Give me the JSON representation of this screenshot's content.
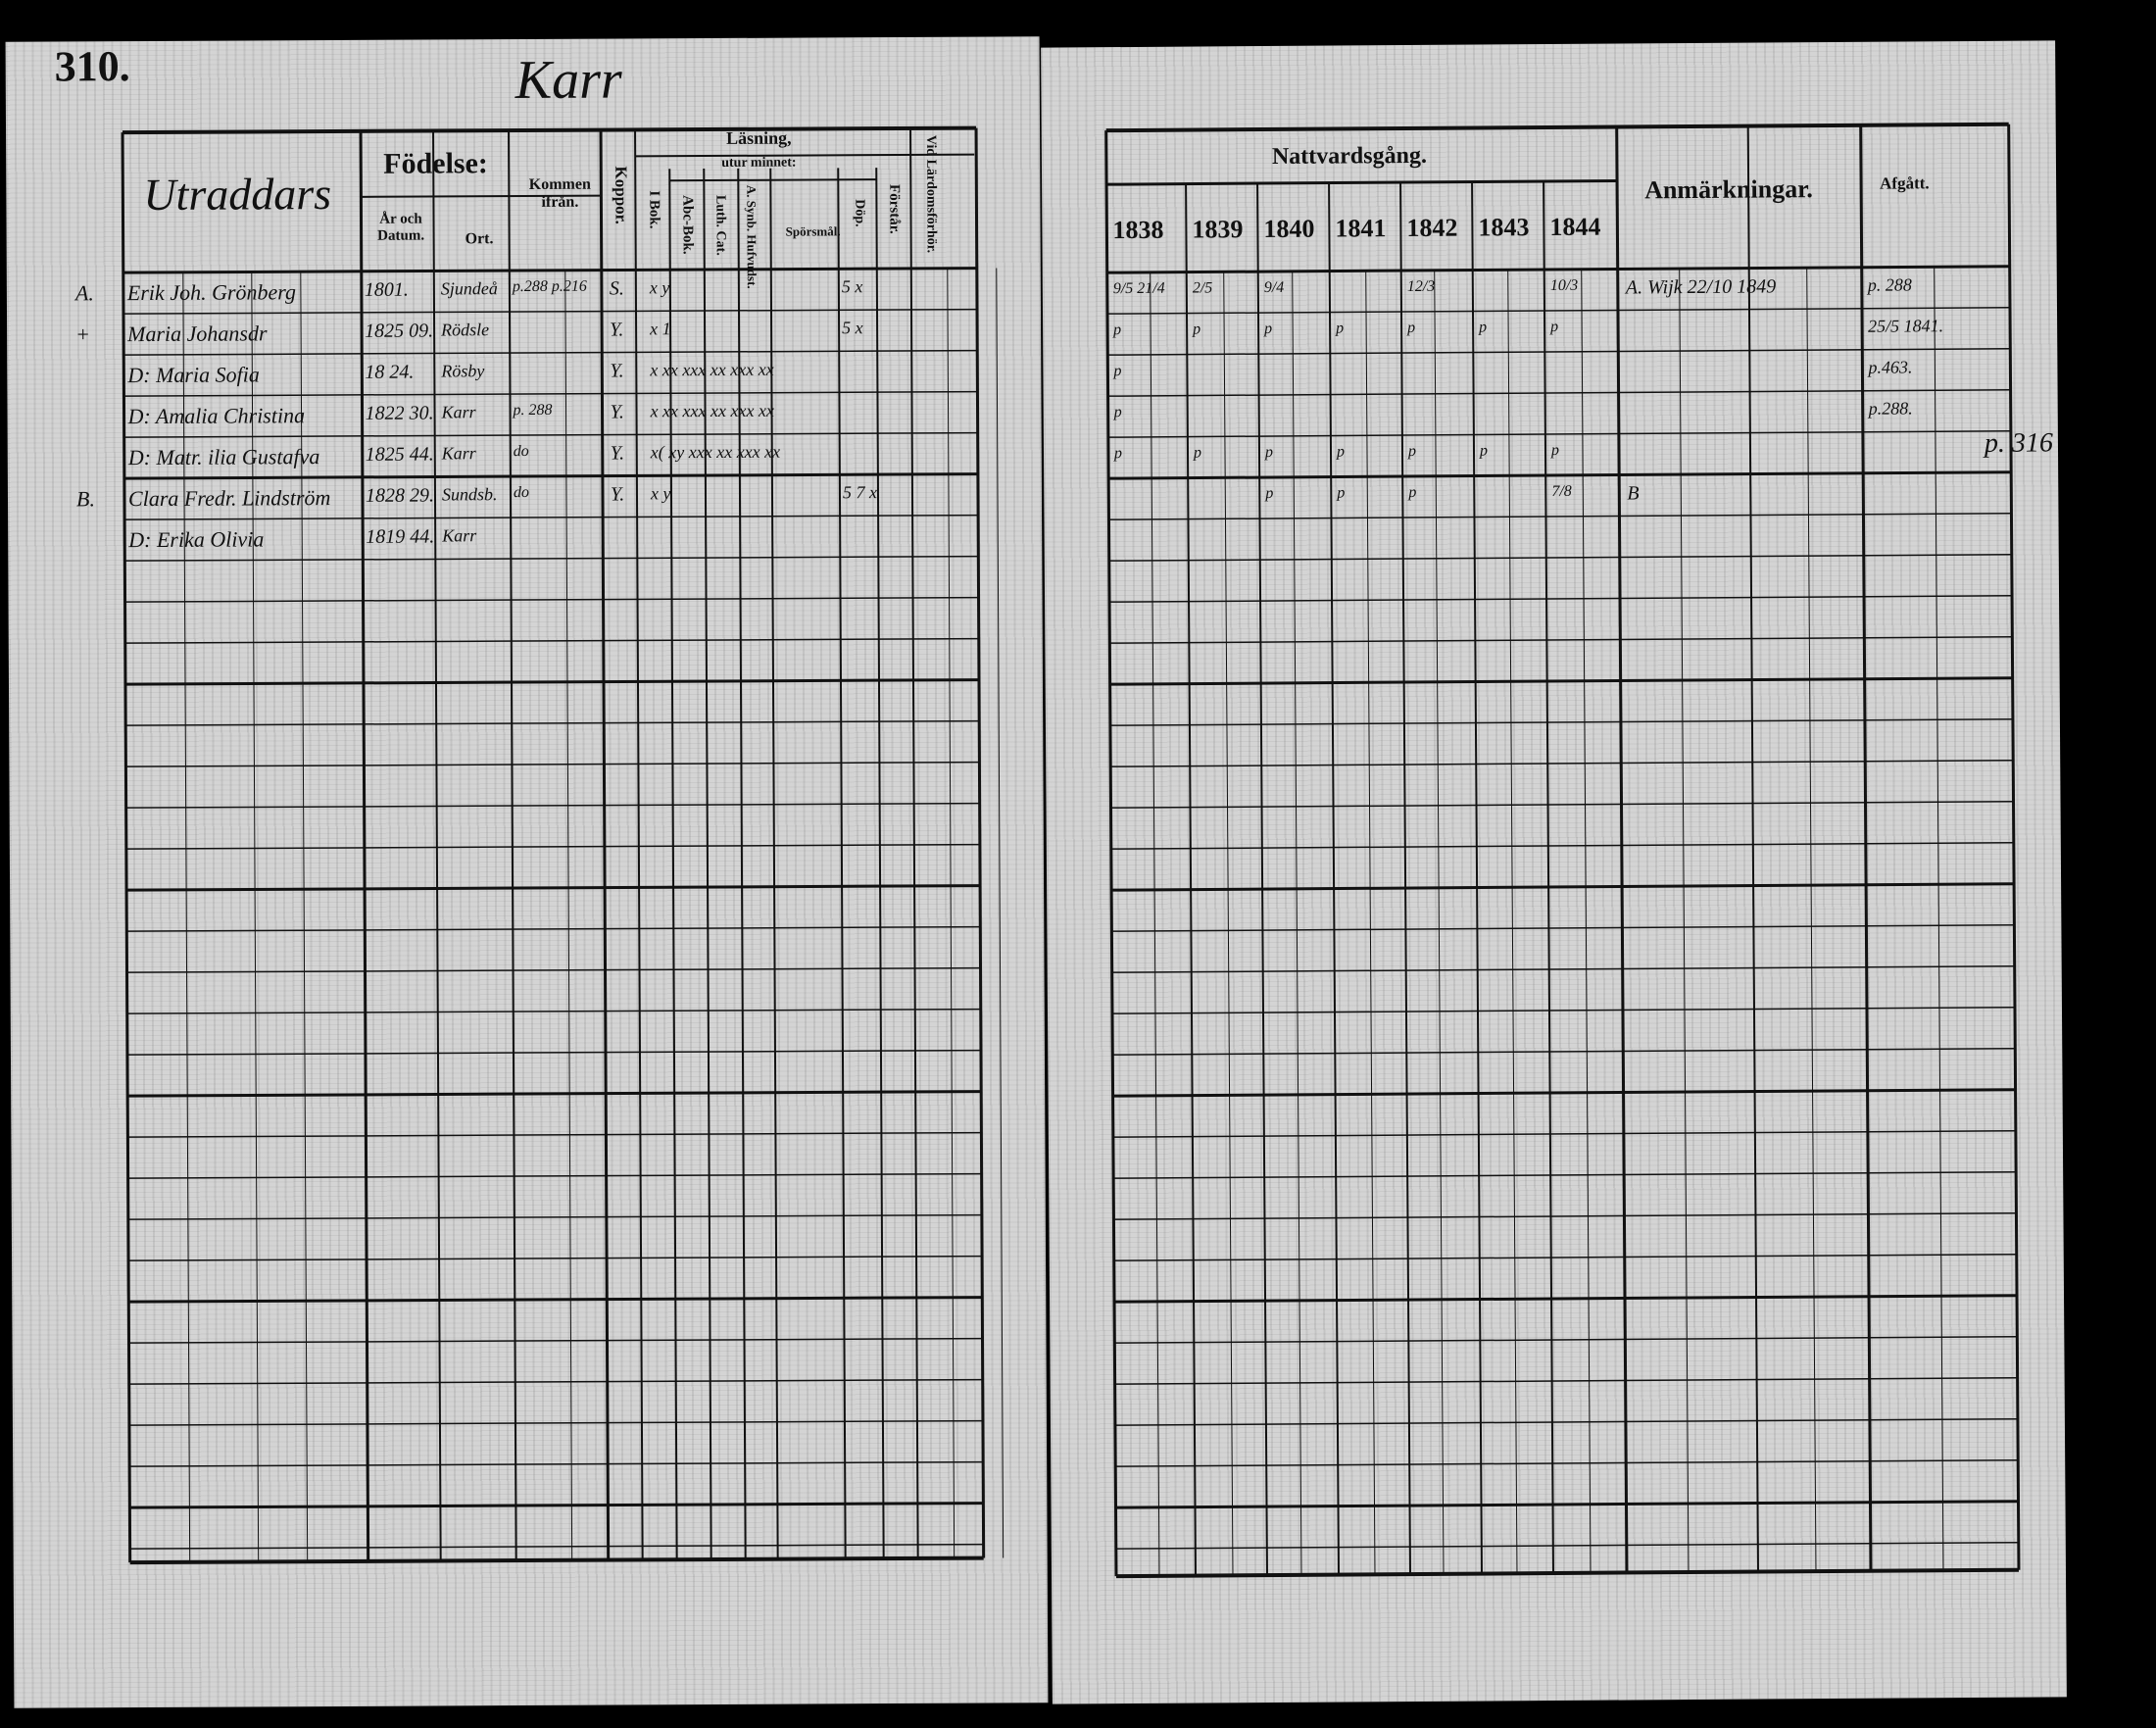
{
  "left_page": {
    "page_number": "310.",
    "place_title": "Karr",
    "headers": {
      "name": "Utraddars",
      "fodelse": "Födelse:",
      "ar_och_datum": "År och Datum.",
      "ort": "Ort.",
      "kommen_ifran": "Kommen ifrån.",
      "koppor": "Koppor.",
      "lasning": "Läsning,",
      "utur_minnet": "utur minnet:",
      "i_bok": "I Bok.",
      "abc_bok": "Abc-Bok.",
      "luth_cat": "Luth. Cat.",
      "a_synb_hufvud": "A. Synb. Hufvudst.",
      "sporsmal": "Spörsmål.",
      "dop": "Döp.",
      "forstar": "Förstår.",
      "vid_larodomsforhor": "Vid Lärdomsförhör."
    },
    "rows": [
      {
        "mark": "A.",
        "name": "Erik Joh. Grönberg",
        "year": "1801.",
        "place": "Sjundeå",
        "from": "p.288 p.216",
        "koppor": "S.",
        "reading": "x y",
        "tail": "5     x"
      },
      {
        "mark": "+",
        "name": "Maria Johansdr",
        "year": "1825 09.",
        "place": "Rödsle",
        "from": "",
        "koppor": "Y.",
        "reading": "x 1",
        "tail": "5     x"
      },
      {
        "mark": "",
        "name": "D: Maria Sofia",
        "year": "18 24.",
        "place": "Rösby",
        "from": "",
        "koppor": "Y.",
        "reading": "x  xx  xxx  xx  xxx  xx",
        "tail": ""
      },
      {
        "mark": "",
        "name": "D: Amalia Christina",
        "year": "1822 30.",
        "place": "Karr",
        "from": "p. 288",
        "koppor": "Y.",
        "reading": "x  xx  xxx  xx  xxx  xx",
        "tail": ""
      },
      {
        "mark": "",
        "name": "D: Matr. ilia Gustafva",
        "year": "1825 44.",
        "place": "Karr",
        "from": "do",
        "koppor": "Y.",
        "reading": "x(  xy  xxx  xx  xxx  xx",
        "tail": ""
      },
      {
        "mark": "B.",
        "name": "Clara Fredr. Lindström",
        "year": "1828 29.",
        "place": "Sundsb.",
        "from": "do",
        "koppor": "Y.",
        "reading": "x y",
        "tail": "5 7  x"
      },
      {
        "mark": "",
        "name": "D: Erika Olivia",
        "year": "1819 44.",
        "place": "Karr",
        "from": "",
        "koppor": "",
        "reading": "",
        "tail": ""
      }
    ]
  },
  "right_page": {
    "headers": {
      "nattvardsgang": "Nattvardsgång.",
      "years": [
        "1838",
        "1839",
        "1840",
        "1841",
        "1842",
        "1843",
        "1844"
      ],
      "anmarkningar": "Anmärkningar.",
      "afgatt": "Afgått."
    },
    "rows": [
      {
        "marks": [
          "9/5 21/4",
          "2/5",
          "9/4",
          "",
          "12/3",
          "",
          "10/3"
        ],
        "remark": "A. Wijk 22/10 1849",
        "afgatt": "p. 288"
      },
      {
        "marks": [
          "p",
          "p",
          "p",
          "p",
          "p",
          "p",
          "p"
        ],
        "remark": "",
        "afgatt": "25/5 1841."
      },
      {
        "marks": [
          "p",
          "",
          "",
          "",
          "",
          "",
          ""
        ],
        "remark": "",
        "afgatt": "p.463."
      },
      {
        "marks": [
          "p",
          "",
          "",
          "",
          "",
          "",
          ""
        ],
        "remark": "",
        "afgatt": "p.288."
      },
      {
        "marks": [
          "p",
          "p",
          "p",
          "p",
          "p",
          "p",
          "p"
        ],
        "remark": "",
        "afgatt": ""
      },
      {
        "marks": [
          "",
          "",
          "p",
          "p",
          "p",
          "",
          "7/8"
        ],
        "remark": "B",
        "afgatt": ""
      }
    ],
    "margin_note": "p. 316"
  }
}
